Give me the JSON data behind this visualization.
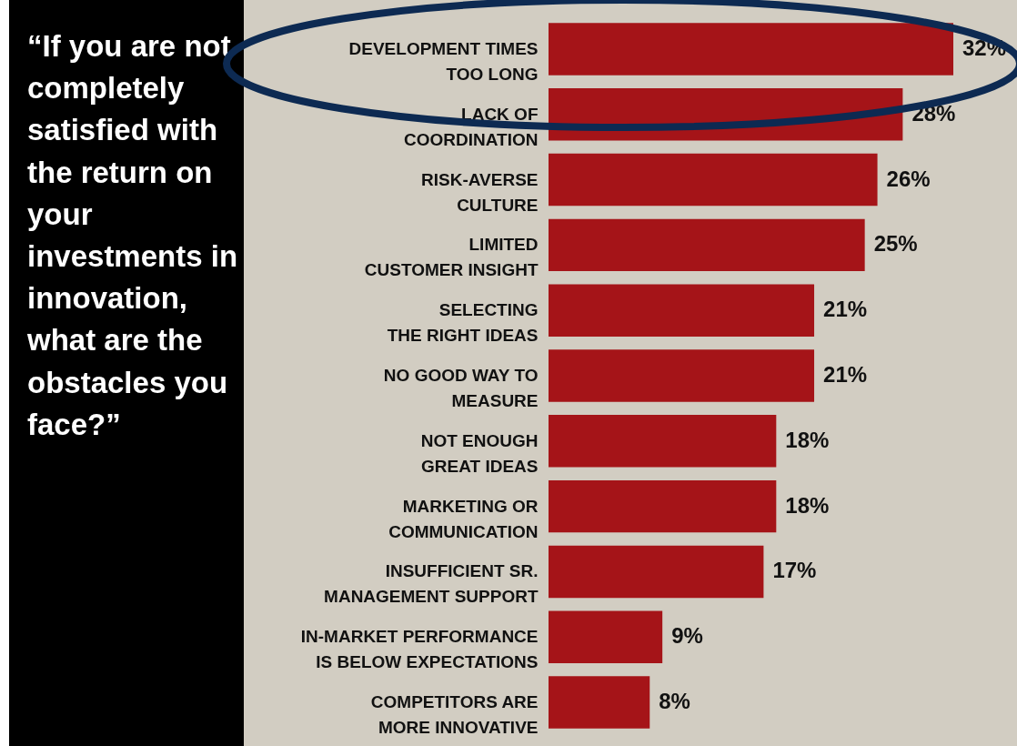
{
  "chart_data": {
    "type": "bar",
    "orientation": "horizontal",
    "title": "“If you are not completely satisfied with the return on your investments in innovation, what are the obstacles you face?”",
    "categories": [
      "DEVELOPMENT TIMES\nTOO LONG",
      "LACK OF\nCOORDINATION",
      "RISK-AVERSE\nCULTURE",
      "LIMITED\nCUSTOMER INSIGHT",
      "SELECTING\nTHE RIGHT IDEAS",
      "NO GOOD WAY TO\nMEASURE",
      "NOT ENOUGH\nGREAT IDEAS",
      "MARKETING OR\nCOMMUNICATION",
      "INSUFFICIENT SR.\nMANAGEMENT SUPPORT",
      "IN-MARKET PERFORMANCE\nIS BELOW EXPECTATIONS",
      "COMPETITORS ARE\nMORE INNOVATIVE"
    ],
    "values": [
      32,
      28,
      26,
      25,
      21,
      21,
      18,
      18,
      17,
      9,
      8
    ],
    "value_labels": [
      "32%",
      "28%",
      "26%",
      "25%",
      "21%",
      "21%",
      "18%",
      "18%",
      "17%",
      "9%",
      "8%"
    ],
    "color": "#a51418"
  }
}
